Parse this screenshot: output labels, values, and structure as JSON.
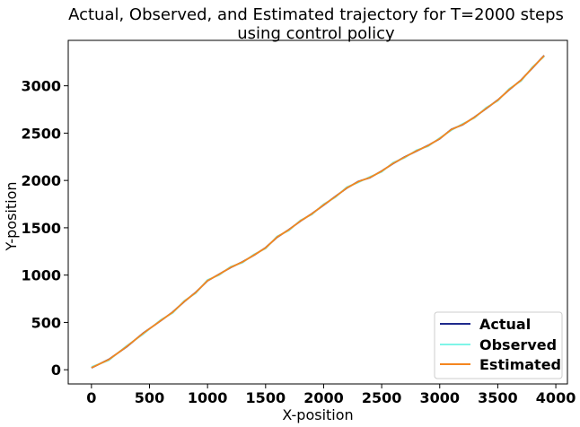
{
  "chart_data": {
    "type": "line",
    "title": "Actual, Observed, and Estimated trajectory for T=2000 steps",
    "subtitle": "using control policy",
    "xlabel": "X-position",
    "ylabel": "Y-position",
    "xlim": [
      -200,
      4100
    ],
    "ylim": [
      -150,
      3480
    ],
    "xticks": [
      0,
      500,
      1000,
      1500,
      2000,
      2500,
      3000,
      3500,
      4000
    ],
    "yticks": [
      0,
      500,
      1000,
      1500,
      2000,
      2500,
      3000
    ],
    "grid": false,
    "legend_position": "lower-right",
    "series": [
      {
        "name": "Actual",
        "color": "#1f2a8c",
        "x": [
          0,
          150,
          300,
          450,
          600,
          700,
          800,
          900,
          1000,
          1100,
          1200,
          1300,
          1400,
          1500,
          1600,
          1700,
          1800,
          1900,
          2000,
          2100,
          2200,
          2300,
          2400,
          2500,
          2600,
          2700,
          2800,
          2900,
          3000,
          3100,
          3200,
          3300,
          3400,
          3500,
          3600,
          3700,
          3800,
          3900
        ],
        "y": [
          20,
          110,
          240,
          390,
          520,
          610,
          720,
          820,
          940,
          1010,
          1080,
          1140,
          1210,
          1290,
          1400,
          1480,
          1570,
          1650,
          1740,
          1830,
          1920,
          1990,
          2030,
          2100,
          2180,
          2250,
          2310,
          2370,
          2440,
          2540,
          2590,
          2670,
          2760,
          2850,
          2960,
          3060,
          3190,
          3320
        ]
      },
      {
        "name": "Observed",
        "color": "#7ff5e8",
        "x": [
          0,
          150,
          300,
          450,
          600,
          700,
          800,
          900,
          1000,
          1100,
          1200,
          1300,
          1400,
          1500,
          1600,
          1700,
          1800,
          1900,
          2000,
          2100,
          2200,
          2300,
          2400,
          2500,
          2600,
          2700,
          2800,
          2900,
          3000,
          3100,
          3200,
          3300,
          3400,
          3500,
          3600,
          3700,
          3800,
          3900
        ],
        "y": [
          30,
          100,
          250,
          380,
          530,
          600,
          730,
          810,
          950,
          1000,
          1090,
          1130,
          1220,
          1280,
          1410,
          1470,
          1580,
          1640,
          1750,
          1820,
          1930,
          1980,
          2040,
          2090,
          2190,
          2240,
          2320,
          2360,
          2450,
          2530,
          2600,
          2660,
          2770,
          2840,
          2970,
          3050,
          3200,
          3310
        ]
      },
      {
        "name": "Estimated",
        "color": "#f5861f",
        "x": [
          0,
          150,
          300,
          450,
          600,
          700,
          800,
          900,
          1000,
          1100,
          1200,
          1300,
          1400,
          1500,
          1600,
          1700,
          1800,
          1900,
          2000,
          2100,
          2200,
          2300,
          2400,
          2500,
          2600,
          2700,
          2800,
          2900,
          3000,
          3100,
          3200,
          3300,
          3400,
          3500,
          3600,
          3700,
          3800,
          3900
        ],
        "y": [
          22,
          108,
          242,
          388,
          522,
          608,
          722,
          818,
          942,
          1008,
          1082,
          1138,
          1212,
          1288,
          1402,
          1478,
          1572,
          1648,
          1742,
          1828,
          1922,
          1988,
          2032,
          2098,
          2182,
          2248,
          2312,
          2368,
          2442,
          2538,
          2592,
          2668,
          2762,
          2848,
          2962,
          3058,
          3192,
          3318
        ]
      }
    ]
  }
}
